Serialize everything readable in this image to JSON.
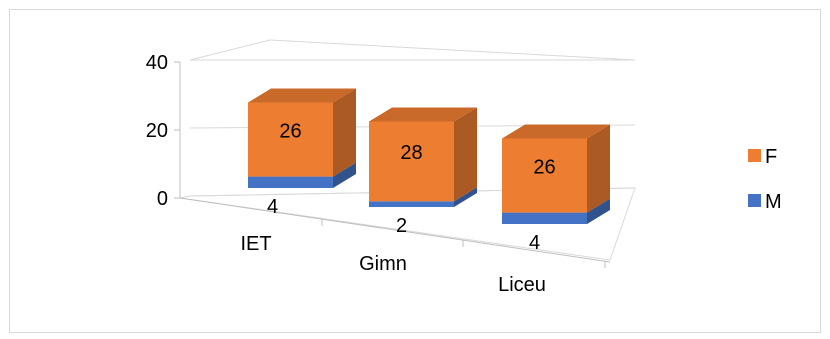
{
  "chart_data": {
    "type": "bar",
    "stacked": true,
    "three_d": true,
    "categories": [
      "IET",
      "Gimn",
      "Liceu"
    ],
    "series": [
      {
        "name": "M",
        "values": [
          4,
          2,
          4
        ],
        "color": "#4472C4"
      },
      {
        "name": "F",
        "values": [
          26,
          28,
          26
        ],
        "color": "#ED7D31"
      }
    ],
    "y_ticks": [
      "0",
      "20",
      "40"
    ],
    "ylim": [
      0,
      40
    ],
    "grid": true,
    "legend_position": "right",
    "legend": [
      {
        "label": "F",
        "color": "#ED7D31"
      },
      {
        "label": "M",
        "color": "#4472C4"
      }
    ]
  }
}
